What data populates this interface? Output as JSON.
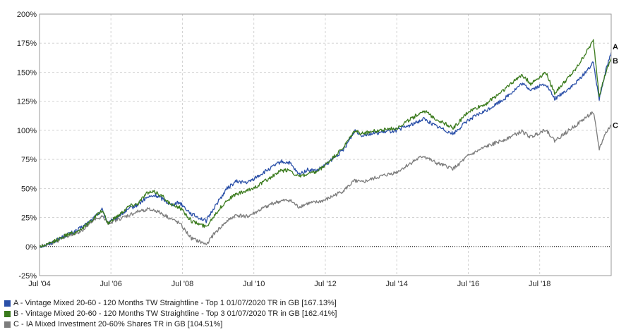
{
  "chart_data": {
    "type": "line",
    "x_ticks": [
      "Jul '04",
      "Jul '06",
      "Jul '08",
      "Jul '10",
      "Jul '12",
      "Jul '14",
      "Jul '16",
      "Jul '18"
    ],
    "y_ticks": [
      "-25%",
      "0%",
      "25%",
      "50%",
      "75%",
      "100%",
      "125%",
      "150%",
      "175%",
      "200%"
    ],
    "ylim": [
      -25,
      200
    ],
    "xlim": [
      "2004-07-01",
      "2020-07-01"
    ],
    "grid": true,
    "legend_position": "bottom",
    "series": [
      {
        "name": "A - Vintage Mixed 20-60 - 120 Months TW Straightline - Top 1 01/07/2020 TR in GB [167.13%]",
        "label": "A",
        "color": "#2a4fa8",
        "points": [
          [
            "2004-07-01",
            0
          ],
          [
            "2004-10-01",
            2
          ],
          [
            "2005-01-01",
            6
          ],
          [
            "2005-04-01",
            10
          ],
          [
            "2005-07-01",
            13
          ],
          [
            "2005-10-01",
            18
          ],
          [
            "2006-01-01",
            24
          ],
          [
            "2006-04-01",
            32
          ],
          [
            "2006-06-01",
            20
          ],
          [
            "2006-10-01",
            27
          ],
          [
            "2007-01-01",
            32
          ],
          [
            "2007-04-01",
            36
          ],
          [
            "2007-07-01",
            42
          ],
          [
            "2007-10-01",
            44
          ],
          [
            "2008-01-01",
            40
          ],
          [
            "2008-03-01",
            36
          ],
          [
            "2008-06-01",
            38
          ],
          [
            "2008-10-01",
            28
          ],
          [
            "2009-03-01",
            22
          ],
          [
            "2009-06-01",
            35
          ],
          [
            "2009-10-01",
            50
          ],
          [
            "2010-01-01",
            56
          ],
          [
            "2010-05-01",
            55
          ],
          [
            "2010-08-01",
            60
          ],
          [
            "2011-01-01",
            68
          ],
          [
            "2011-04-01",
            73
          ],
          [
            "2011-07-01",
            72
          ],
          [
            "2011-10-01",
            62
          ],
          [
            "2012-01-01",
            66
          ],
          [
            "2012-04-01",
            65
          ],
          [
            "2012-07-01",
            70
          ],
          [
            "2013-01-01",
            83
          ],
          [
            "2013-05-01",
            100
          ],
          [
            "2013-07-01",
            96
          ],
          [
            "2014-01-01",
            98
          ],
          [
            "2014-07-01",
            100
          ],
          [
            "2015-01-01",
            106
          ],
          [
            "2015-04-01",
            110
          ],
          [
            "2015-08-01",
            104
          ],
          [
            "2016-02-01",
            97
          ],
          [
            "2016-07-01",
            109
          ],
          [
            "2017-01-01",
            117
          ],
          [
            "2017-07-01",
            127
          ],
          [
            "2018-01-01",
            140
          ],
          [
            "2018-04-01",
            135
          ],
          [
            "2018-09-01",
            140
          ],
          [
            "2018-12-01",
            127
          ],
          [
            "2019-07-01",
            140
          ],
          [
            "2020-01-01",
            158
          ],
          [
            "2020-03-01",
            127
          ],
          [
            "2020-05-01",
            150
          ],
          [
            "2020-07-01",
            167
          ]
        ]
      },
      {
        "name": "B - Vintage Mixed 20-60 - 120 Months TW Straightline - Top 3 01/07/2020 TR in GB [162.41%]",
        "label": "B",
        "color": "#3a7a1c",
        "points": [
          [
            "2004-07-01",
            0
          ],
          [
            "2004-10-01",
            2
          ],
          [
            "2005-01-01",
            6
          ],
          [
            "2005-04-01",
            10
          ],
          [
            "2005-07-01",
            12
          ],
          [
            "2005-10-01",
            17
          ],
          [
            "2006-01-01",
            24
          ],
          [
            "2006-04-01",
            31
          ],
          [
            "2006-06-01",
            20
          ],
          [
            "2006-10-01",
            28
          ],
          [
            "2007-01-01",
            35
          ],
          [
            "2007-04-01",
            37
          ],
          [
            "2007-07-01",
            46
          ],
          [
            "2007-10-01",
            47
          ],
          [
            "2008-01-01",
            42
          ],
          [
            "2008-03-01",
            36
          ],
          [
            "2008-06-01",
            34
          ],
          [
            "2008-10-01",
            22
          ],
          [
            "2009-03-01",
            17
          ],
          [
            "2009-06-01",
            28
          ],
          [
            "2009-10-01",
            40
          ],
          [
            "2010-01-01",
            45
          ],
          [
            "2010-05-01",
            48
          ],
          [
            "2010-08-01",
            52
          ],
          [
            "2011-01-01",
            60
          ],
          [
            "2011-04-01",
            65
          ],
          [
            "2011-07-01",
            66
          ],
          [
            "2011-10-01",
            60
          ],
          [
            "2012-01-01",
            62
          ],
          [
            "2012-04-01",
            64
          ],
          [
            "2012-07-01",
            70
          ],
          [
            "2013-01-01",
            85
          ],
          [
            "2013-05-01",
            100
          ],
          [
            "2013-07-01",
            97
          ],
          [
            "2014-01-01",
            100
          ],
          [
            "2014-07-01",
            102
          ],
          [
            "2015-01-01",
            112
          ],
          [
            "2015-04-01",
            117
          ],
          [
            "2015-08-01",
            110
          ],
          [
            "2016-02-01",
            102
          ],
          [
            "2016-07-01",
            116
          ],
          [
            "2017-01-01",
            123
          ],
          [
            "2017-07-01",
            135
          ],
          [
            "2018-01-01",
            148
          ],
          [
            "2018-04-01",
            140
          ],
          [
            "2018-09-01",
            150
          ],
          [
            "2018-12-01",
            132
          ],
          [
            "2019-07-01",
            152
          ],
          [
            "2020-01-01",
            177
          ],
          [
            "2020-03-01",
            130
          ],
          [
            "2020-05-01",
            148
          ],
          [
            "2020-07-01",
            162
          ]
        ]
      },
      {
        "name": "C - IA Mixed Investment 20-60% Shares TR in GB [104.51%]",
        "label": "C",
        "color": "#7d7d7d",
        "points": [
          [
            "2004-07-01",
            0
          ],
          [
            "2004-10-01",
            2
          ],
          [
            "2005-01-01",
            5
          ],
          [
            "2005-04-01",
            9
          ],
          [
            "2005-07-01",
            11
          ],
          [
            "2005-10-01",
            15
          ],
          [
            "2006-01-01",
            22
          ],
          [
            "2006-04-01",
            26
          ],
          [
            "2006-06-01",
            20
          ],
          [
            "2006-10-01",
            24
          ],
          [
            "2007-01-01",
            27
          ],
          [
            "2007-04-01",
            30
          ],
          [
            "2007-07-01",
            32
          ],
          [
            "2007-10-01",
            31
          ],
          [
            "2008-01-01",
            27
          ],
          [
            "2008-03-01",
            24
          ],
          [
            "2008-06-01",
            20
          ],
          [
            "2008-10-01",
            7
          ],
          [
            "2009-03-01",
            2
          ],
          [
            "2009-06-01",
            12
          ],
          [
            "2009-10-01",
            22
          ],
          [
            "2010-01-01",
            27
          ],
          [
            "2010-05-01",
            26
          ],
          [
            "2010-08-01",
            30
          ],
          [
            "2011-01-01",
            37
          ],
          [
            "2011-04-01",
            39
          ],
          [
            "2011-07-01",
            40
          ],
          [
            "2011-10-01",
            34
          ],
          [
            "2012-01-01",
            37
          ],
          [
            "2012-04-01",
            38
          ],
          [
            "2012-07-01",
            40
          ],
          [
            "2013-01-01",
            48
          ],
          [
            "2013-05-01",
            57
          ],
          [
            "2013-07-01",
            55
          ],
          [
            "2014-01-01",
            60
          ],
          [
            "2014-07-01",
            64
          ],
          [
            "2015-01-01",
            74
          ],
          [
            "2015-04-01",
            78
          ],
          [
            "2015-08-01",
            72
          ],
          [
            "2016-02-01",
            67
          ],
          [
            "2016-07-01",
            78
          ],
          [
            "2017-01-01",
            86
          ],
          [
            "2017-07-01",
            92
          ],
          [
            "2018-01-01",
            99
          ],
          [
            "2018-04-01",
            94
          ],
          [
            "2018-09-01",
            101
          ],
          [
            "2018-12-01",
            91
          ],
          [
            "2019-07-01",
            104
          ],
          [
            "2020-01-01",
            116
          ],
          [
            "2020-03-01",
            84
          ],
          [
            "2020-05-01",
            97
          ],
          [
            "2020-07-01",
            104.5
          ]
        ]
      }
    ]
  }
}
